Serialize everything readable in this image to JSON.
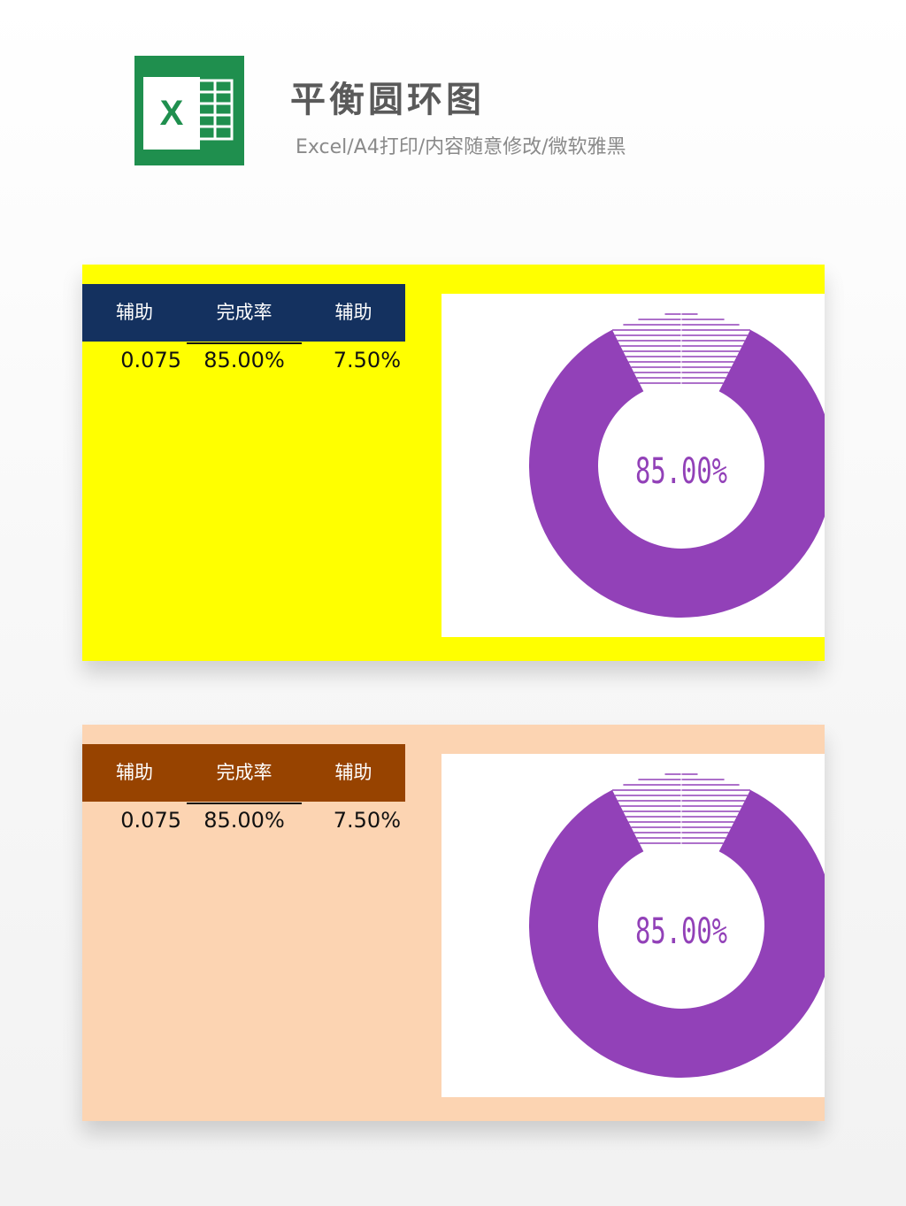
{
  "header": {
    "title": "平衡圆环图",
    "subtitle": "Excel/A4打印/内容随意修改/微软雅黑",
    "logo_letter": "X",
    "logo_color": "#1f8f4e"
  },
  "panels": [
    {
      "background": "#ffff00",
      "header_color": "#14315f",
      "table": {
        "headers": [
          "辅助",
          "完成率",
          "辅助"
        ],
        "values": [
          "0.075",
          "85.00%",
          "7.50%"
        ]
      },
      "chart_data": {
        "type": "pie",
        "chart_style": "doughnut",
        "slices": [
          {
            "label": "辅助",
            "value": 0.075,
            "style": "striped"
          },
          {
            "label": "完成率",
            "value": 0.85,
            "style": "solid"
          },
          {
            "label": "辅助",
            "value": 0.075,
            "style": "striped"
          }
        ],
        "center_label": "85.00%",
        "colors": {
          "ring": "#9241b8",
          "stripe": "#9241b8"
        }
      }
    },
    {
      "background": "#fcd4b2",
      "header_color": "#974300",
      "table": {
        "headers": [
          "辅助",
          "完成率",
          "辅助"
        ],
        "values": [
          "0.075",
          "85.00%",
          "7.50%"
        ]
      },
      "chart_data": {
        "type": "pie",
        "chart_style": "doughnut",
        "slices": [
          {
            "label": "辅助",
            "value": 0.075,
            "style": "striped"
          },
          {
            "label": "完成率",
            "value": 0.85,
            "style": "solid"
          },
          {
            "label": "辅助",
            "value": 0.075,
            "style": "striped"
          }
        ],
        "center_label": "85.00%",
        "colors": {
          "ring": "#9241b8",
          "stripe": "#9241b8"
        }
      }
    }
  ]
}
